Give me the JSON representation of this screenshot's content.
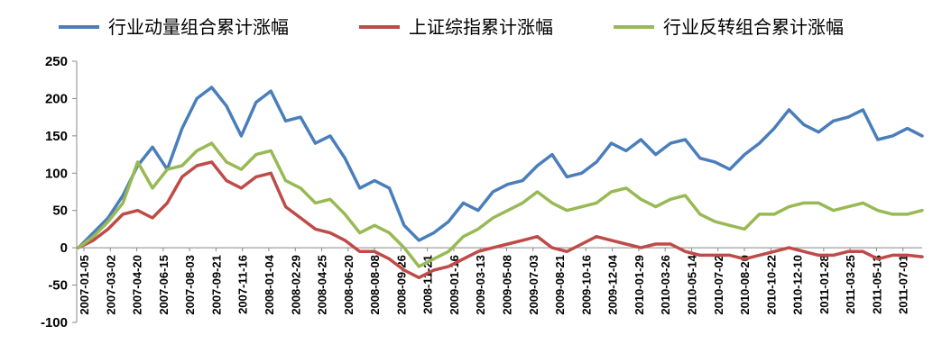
{
  "chart_data": {
    "type": "line",
    "title": "",
    "xlabel": "",
    "ylabel": "",
    "ylim": [
      -100,
      250
    ],
    "yticks": [
      -100,
      -50,
      0,
      50,
      100,
      150,
      200,
      250
    ],
    "ytick_labels": [
      "-100",
      "-50",
      "0",
      "50",
      "100",
      "150",
      "200",
      "250"
    ],
    "xtick_labels": [
      "2007-01-05",
      "2007-03-02",
      "2007-04-20",
      "2007-06-15",
      "2007-08-03",
      "2007-09-21",
      "2007-11-16",
      "2008-01-04",
      "2008-02-29",
      "2008-04-25",
      "2008-06-20",
      "2008-08-08",
      "2008-09-26",
      "2008-11-21",
      "2009-01-16",
      "2009-03-13",
      "2009-05-08",
      "2009-07-03",
      "2009-08-21",
      "2009-10-16",
      "2009-12-04",
      "2010-01-29",
      "2010-03-26",
      "2010-05-14",
      "2010-07-02",
      "2010-08-20",
      "2010-10-22",
      "2010-12-10",
      "2011-01-28",
      "2011-03-25",
      "2011-05-13",
      "2011-07-01"
    ],
    "legend_position": "top",
    "series": [
      {
        "name": "行业动量组合累计涨幅",
        "color": "#4a7ebb",
        "values": [
          0,
          20,
          40,
          70,
          110,
          135,
          105,
          160,
          200,
          215,
          190,
          150,
          195,
          210,
          170,
          175,
          140,
          150,
          120,
          80,
          90,
          80,
          30,
          10,
          20,
          35,
          60,
          50,
          75,
          85,
          90,
          110,
          125,
          95,
          100,
          115,
          140,
          130,
          145,
          125,
          140,
          145,
          120,
          115,
          105,
          125,
          140,
          160,
          185,
          165,
          155,
          170,
          175,
          185,
          145,
          150,
          160,
          150
        ]
      },
      {
        "name": "上证综指累计涨幅",
        "color": "#be4b48",
        "values": [
          0,
          10,
          25,
          45,
          50,
          40,
          60,
          95,
          110,
          115,
          90,
          80,
          95,
          100,
          55,
          40,
          25,
          20,
          10,
          -5,
          -5,
          -15,
          -30,
          -40,
          -30,
          -25,
          -15,
          -5,
          0,
          5,
          10,
          15,
          0,
          -5,
          5,
          15,
          10,
          5,
          0,
          5,
          5,
          -5,
          -10,
          -10,
          -10,
          -15,
          -10,
          -5,
          0,
          -5,
          -10,
          -10,
          -5,
          -5,
          -15,
          -10,
          -10,
          -12
        ]
      },
      {
        "name": "行业反转组合累计涨幅",
        "color": "#98b954",
        "values": [
          0,
          15,
          35,
          60,
          115,
          80,
          105,
          110,
          130,
          140,
          115,
          105,
          125,
          130,
          90,
          80,
          60,
          65,
          45,
          20,
          30,
          20,
          0,
          -25,
          -15,
          -5,
          15,
          25,
          40,
          50,
          60,
          75,
          60,
          50,
          55,
          60,
          75,
          80,
          65,
          55,
          65,
          70,
          45,
          35,
          30,
          25,
          45,
          45,
          55,
          60,
          60,
          50,
          55,
          60,
          50,
          45,
          45,
          50
        ]
      }
    ]
  }
}
